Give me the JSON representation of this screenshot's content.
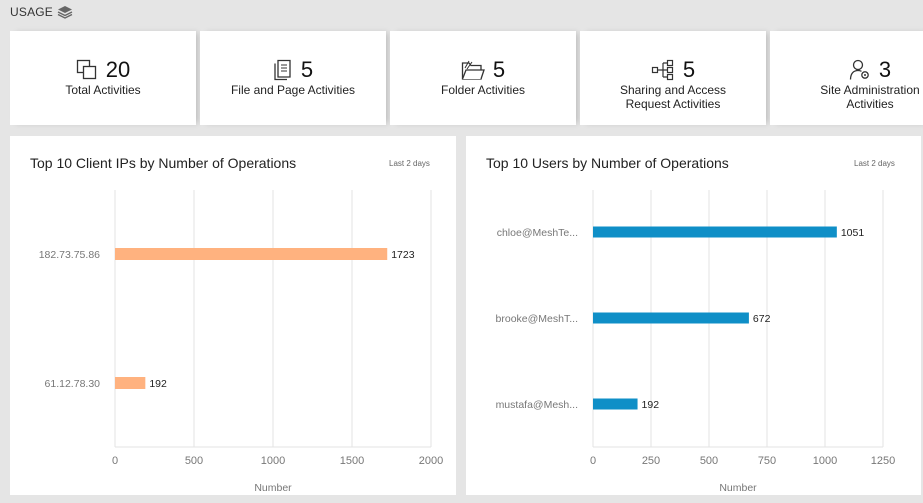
{
  "section": {
    "title": "USAGE",
    "icon": "layers-icon"
  },
  "cards": [
    {
      "count": "20",
      "label": "Total Activities",
      "icon": "copy-icon"
    },
    {
      "count": "5",
      "label": "File and Page Activities",
      "icon": "file-icon"
    },
    {
      "count": "5",
      "label": "Folder Activities",
      "icon": "folder-icon"
    },
    {
      "count": "5",
      "label": "Sharing and Access\nRequest Activities",
      "icon": "share-icon"
    },
    {
      "count": "3",
      "label": "Site Administration\nActivities",
      "icon": "user-gear-icon"
    }
  ],
  "panels": {
    "ips": {
      "title": "Top 10 Client IPs by Number of Operations",
      "period": "Last 2 days"
    },
    "users": {
      "title": "Top 10 Users by Number of Operations",
      "period": "Last 2 days"
    }
  },
  "chart_data": [
    {
      "type": "bar",
      "orientation": "horizontal",
      "title": "Top 10 Client IPs by Number of Operations",
      "categories": [
        "182.73.75.86",
        "61.12.78.30"
      ],
      "values": [
        1723,
        192
      ],
      "xlabel": "Number",
      "ylabel": "",
      "xlim": [
        0,
        2000
      ],
      "xticks": [
        0,
        500,
        1000,
        1500,
        2000
      ],
      "color": "#ffb27f",
      "grid": true
    },
    {
      "type": "bar",
      "orientation": "horizontal",
      "title": "Top 10 Users by Number of Operations",
      "categories": [
        "chloe@MeshTe...",
        "brooke@MeshT...",
        "mustafa@Mesh..."
      ],
      "values": [
        1051,
        672,
        192
      ],
      "xlabel": "Number",
      "ylabel": "",
      "xlim": [
        0,
        1250
      ],
      "xticks": [
        0,
        250,
        500,
        750,
        1000,
        1250
      ],
      "color": "#0f8fc7",
      "grid": true
    }
  ]
}
